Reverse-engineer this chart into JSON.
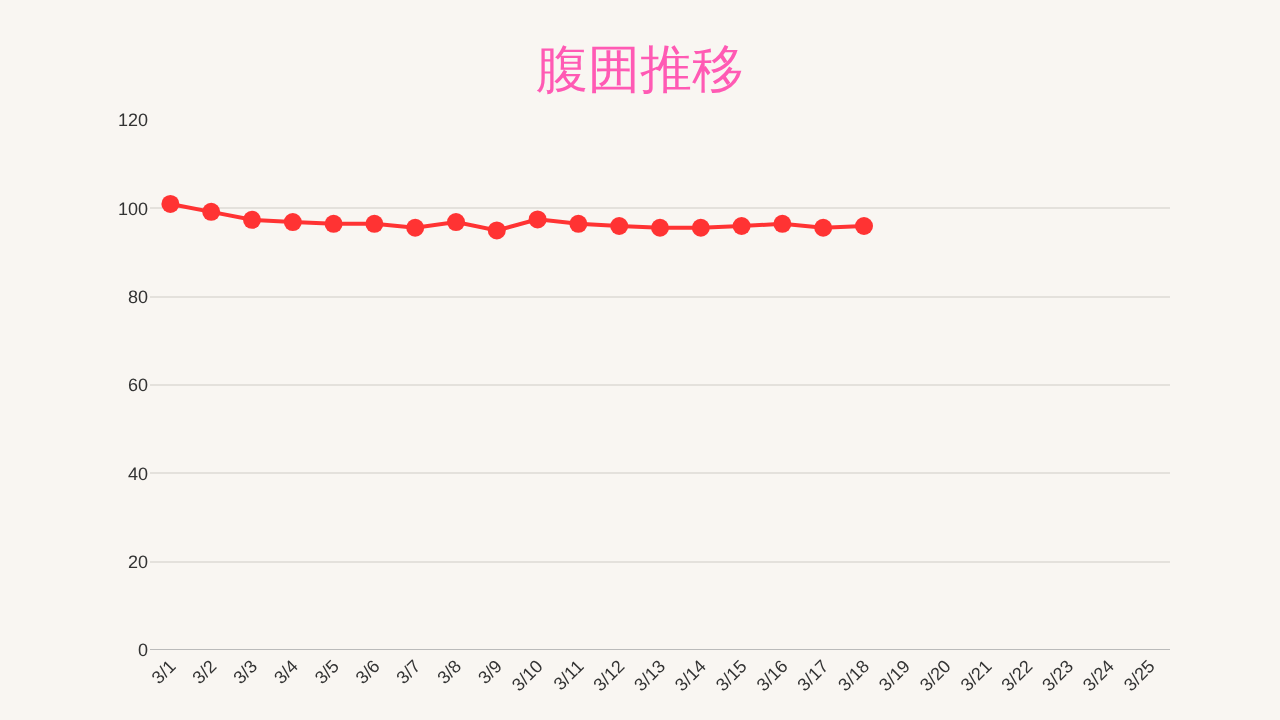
{
  "chart_data": {
    "type": "line",
    "title": "腹囲推移",
    "categories": [
      "3/1",
      "3/2",
      "3/3",
      "3/4",
      "3/5",
      "3/6",
      "3/7",
      "3/8",
      "3/9",
      "3/10",
      "3/11",
      "3/12",
      "3/13",
      "3/14",
      "3/15",
      "3/16",
      "3/17",
      "3/18",
      "3/19",
      "3/20",
      "3/21",
      "3/22",
      "3/23",
      "3/24",
      "3/25"
    ],
    "series": [
      {
        "color": "#ff3333",
        "values": [
          101,
          99.2,
          97.4,
          96.9,
          96.5,
          96.5,
          95.6,
          96.9,
          95,
          97.5,
          96.5,
          96,
          95.6,
          95.6,
          96,
          96.5,
          95.6,
          96,
          null,
          null,
          null,
          null,
          null,
          null,
          null
        ]
      }
    ],
    "ylim": [
      0,
      120
    ],
    "yticks": [
      0,
      20,
      40,
      60,
      80,
      100,
      120
    ],
    "grid": "y",
    "marker": "circle",
    "line_style": "solid"
  }
}
